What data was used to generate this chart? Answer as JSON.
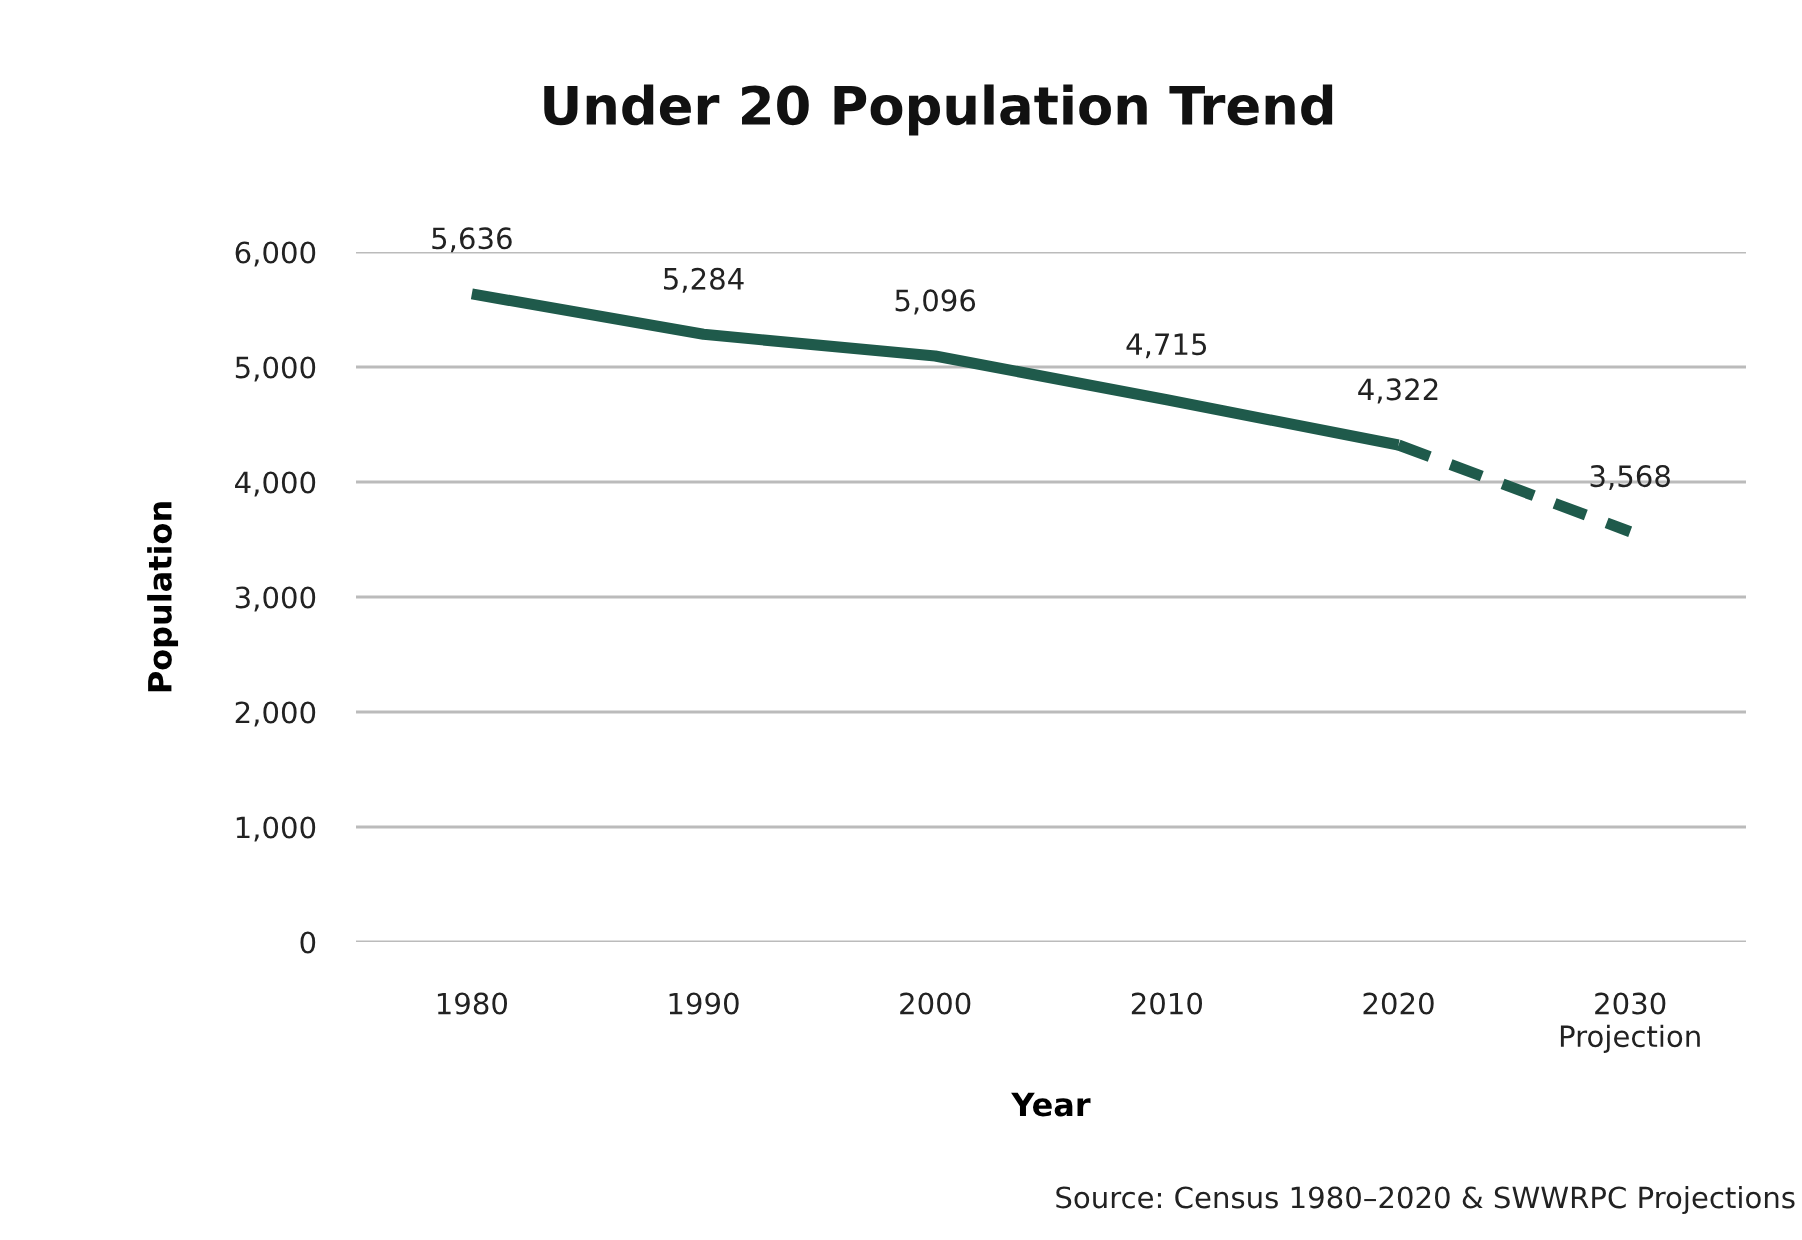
{
  "chart_data": {
    "type": "line",
    "title": "Under 20 Population Trend",
    "xlabel": "Year",
    "ylabel": "Population",
    "categories": [
      "1980",
      "1990",
      "2000",
      "2010",
      "2020",
      "2030\nProjection"
    ],
    "series": [
      {
        "color": "#1f5a4b",
        "line_style": "solid",
        "values": [
          5636,
          5284,
          5096,
          4715,
          4322,
          null
        ],
        "value_labels": [
          "5,636",
          "5,284",
          "5,096",
          "4,715",
          "4,322",
          null
        ]
      },
      {
        "color": "#1f5a4b",
        "line_style": "dashed",
        "values": [
          null,
          null,
          null,
          null,
          4322,
          3568
        ],
        "value_labels": [
          null,
          null,
          null,
          null,
          null,
          "3,568"
        ]
      }
    ],
    "ylim": [
      0,
      6000
    ],
    "yticks": [
      {
        "value": 0,
        "label": "0"
      },
      {
        "value": 1000,
        "label": "1,000"
      },
      {
        "value": 2000,
        "label": "2,000"
      },
      {
        "value": 3000,
        "label": "3,000"
      },
      {
        "value": 4000,
        "label": "4,000"
      },
      {
        "value": 5000,
        "label": "5,000"
      },
      {
        "value": 6000,
        "label": "6,000"
      }
    ],
    "grid": "y",
    "marker": "none",
    "annotations": [
      "Source: Census 1980–2020 & SWWRPC Projections"
    ]
  }
}
